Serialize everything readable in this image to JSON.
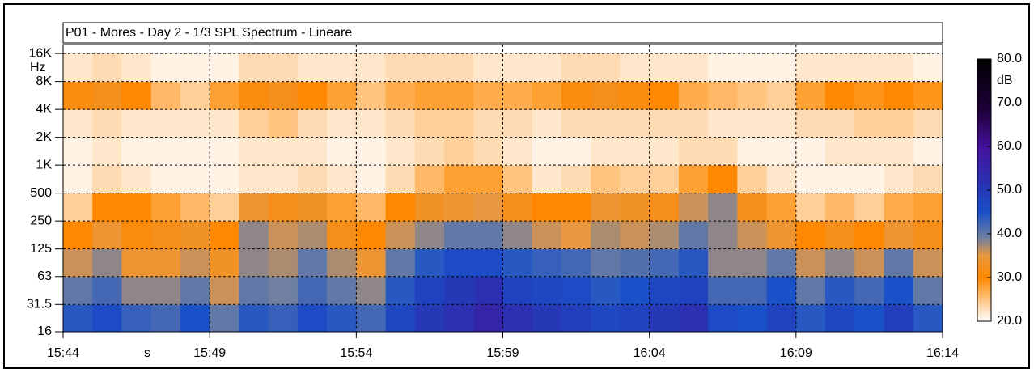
{
  "chart_data": {
    "type": "heatmap",
    "title": "P01 - Mores - Day 2 - 1/3 SPL Spectrum - Lineare",
    "y_unit": "Hz",
    "x_unit": "s",
    "x": [
      "15:44",
      "15:45",
      "15:46",
      "15:47",
      "15:48",
      "15:49",
      "15:50",
      "15:51",
      "15:52",
      "15:53",
      "15:54",
      "15:55",
      "15:56",
      "15:57",
      "15:58",
      "15:59",
      "16:00",
      "16:01",
      "16:02",
      "16:03",
      "16:04",
      "16:05",
      "16:06",
      "16:07",
      "16:08",
      "16:09",
      "16:10",
      "16:11",
      "16:12",
      "16:13"
    ],
    "xlim": [
      "15:44",
      "16:14"
    ],
    "xticks": [
      "15:44",
      "15:49",
      "15:54",
      "15:59",
      "16:04",
      "16:09",
      "16:14"
    ],
    "ylog": true,
    "ylim": [
      16,
      20000
    ],
    "yticks": [
      16,
      31.5,
      63,
      125,
      250,
      500,
      {
        "value": 1000,
        "label": "1K"
      },
      {
        "value": 2000,
        "label": "2K"
      },
      {
        "value": 4000,
        "label": "4K"
      },
      {
        "value": 8000,
        "label": "8K"
      },
      {
        "value": 16000,
        "label": "16K"
      }
    ],
    "grid": true,
    "z": [
      [
        44,
        46,
        43,
        42,
        45,
        40,
        44,
        43,
        46,
        44,
        42,
        47,
        50,
        52,
        55,
        52,
        50,
        49,
        47,
        48,
        50,
        52,
        46,
        45,
        48,
        44,
        47,
        45,
        49,
        44
      ],
      [
        40,
        42,
        38,
        38,
        40,
        36,
        40,
        39,
        42,
        40,
        38,
        44,
        48,
        50,
        52,
        48,
        47,
        46,
        44,
        45,
        47,
        48,
        42,
        42,
        45,
        40,
        44,
        42,
        45,
        40
      ],
      [
        36,
        38,
        34,
        34,
        36,
        33,
        38,
        37,
        40,
        37,
        34,
        40,
        44,
        46,
        46,
        44,
        43,
        42,
        40,
        41,
        42,
        44,
        38,
        38,
        40,
        36,
        38,
        36,
        40,
        36
      ],
      [
        30,
        34,
        31,
        32,
        33,
        30,
        38,
        36,
        37,
        32,
        30,
        36,
        38,
        40,
        40,
        38,
        36,
        35,
        37,
        36,
        37,
        40,
        38,
        36,
        34,
        30,
        32,
        30,
        34,
        32
      ],
      [
        24,
        30,
        30,
        28,
        26,
        24,
        34,
        32,
        33,
        28,
        26,
        30,
        33,
        34,
        35,
        32,
        30,
        30,
        34,
        33,
        32,
        36,
        38,
        32,
        28,
        24,
        26,
        24,
        27,
        28
      ],
      [
        21,
        23,
        22,
        21,
        21,
        21,
        22,
        22,
        23,
        22,
        21,
        23,
        26,
        28,
        28,
        25,
        22,
        23,
        25,
        24,
        24,
        28,
        30,
        24,
        22,
        21,
        21,
        21,
        22,
        23
      ],
      [
        21,
        22,
        21,
        21,
        21,
        21,
        22,
        22,
        22,
        21,
        21,
        22,
        23,
        24,
        23,
        22,
        21,
        21,
        22,
        22,
        22,
        23,
        23,
        21,
        21,
        21,
        22,
        22,
        22,
        21
      ],
      [
        22,
        23,
        22,
        22,
        22,
        22,
        24,
        25,
        23,
        22,
        22,
        23,
        24,
        24,
        23,
        23,
        22,
        23,
        23,
        23,
        23,
        23,
        22,
        22,
        22,
        23,
        23,
        24,
        24,
        23
      ],
      [
        31,
        32,
        30,
        26,
        24,
        28,
        31,
        32,
        30,
        28,
        25,
        27,
        28,
        28,
        27,
        27,
        28,
        31,
        32,
        31,
        30,
        27,
        26,
        25,
        24,
        28,
        30,
        29,
        30,
        29
      ],
      [
        22,
        23,
        22,
        21,
        21,
        21,
        23,
        23,
        22,
        22,
        22,
        23,
        23,
        23,
        22,
        22,
        22,
        23,
        23,
        22,
        22,
        22,
        21,
        21,
        21,
        22,
        22,
        22,
        22,
        21
      ]
    ],
    "colorbar": {
      "label": "dB",
      "lim": [
        20,
        80
      ],
      "ticks": [
        {
          "value": 80,
          "label": "80.0"
        },
        {
          "value": 70,
          "label": "70.0"
        },
        {
          "value": 60,
          "label": "60.0"
        },
        {
          "value": 50,
          "label": "50.0"
        },
        {
          "value": 40,
          "label": "40.0"
        },
        {
          "value": 30,
          "label": "30.0"
        },
        {
          "value": 20,
          "label": "20.0"
        }
      ]
    },
    "colormap": [
      [
        20,
        "#ffffff"
      ],
      [
        30,
        "#ff8800"
      ],
      [
        35,
        "#e89840"
      ],
      [
        39,
        "#7080a0"
      ],
      [
        45,
        "#1a50c8"
      ],
      [
        52,
        "#2a30b0"
      ],
      [
        60,
        "#44109a"
      ],
      [
        68,
        "#20003c"
      ],
      [
        80,
        "#000000"
      ]
    ]
  }
}
